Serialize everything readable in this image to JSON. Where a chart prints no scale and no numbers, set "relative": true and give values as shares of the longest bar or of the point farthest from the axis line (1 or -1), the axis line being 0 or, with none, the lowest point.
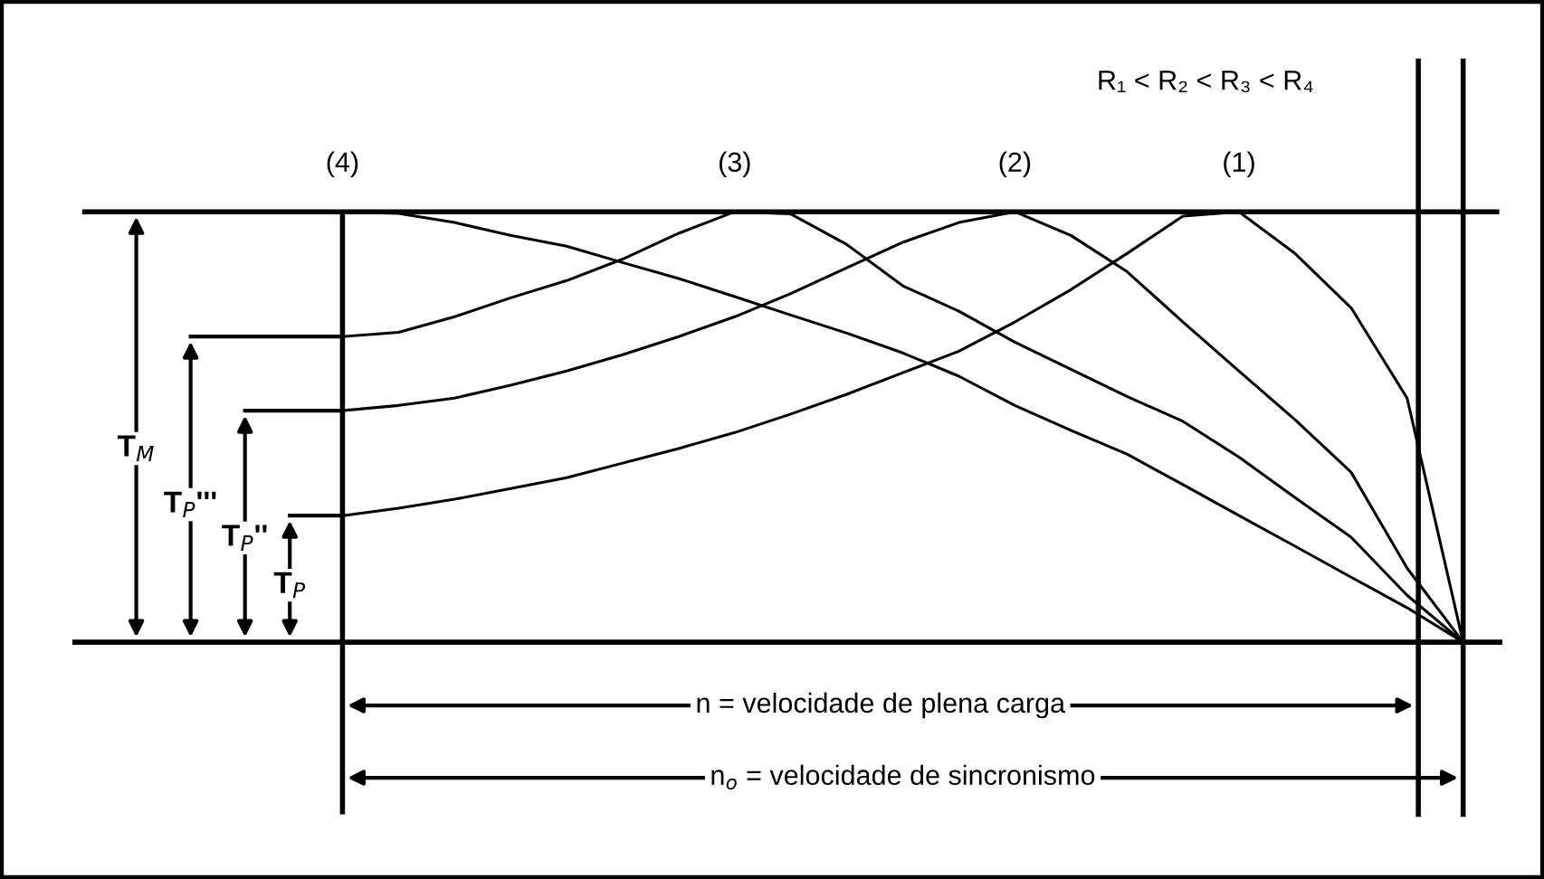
{
  "chart_data": {
    "type": "line",
    "relative": true,
    "legend": false,
    "grid": false,
    "marker": "none",
    "line_style": "solid",
    "categories": [
      null,
      null,
      null,
      null,
      null,
      null,
      null,
      null,
      null,
      null,
      null,
      null,
      null,
      null,
      null,
      null,
      null,
      null,
      null,
      null,
      null
    ],
    "series": [
      {
        "name": "(1)",
        "color": "#000000",
        "values": [
          0.294,
          0.311,
          0.332,
          0.357,
          0.382,
          0.416,
          0.45,
          0.487,
          0.53,
          0.576,
          0.626,
          0.676,
          0.744,
          0.819,
          0.903,
          0.99,
          1.0,
          0.903,
          0.777,
          0.567,
          0
        ]
      },
      {
        "name": "(2)",
        "color": "#000000",
        "values": [
          0.538,
          0.55,
          0.567,
          0.597,
          0.63,
          0.668,
          0.71,
          0.756,
          0.81,
          0.87,
          0.929,
          0.975,
          1.0,
          0.945,
          0.861,
          0.744,
          0.63,
          0.517,
          0.395,
          0.172,
          0
        ]
      },
      {
        "name": "(3)",
        "color": "#000000",
        "values": [
          0.71,
          0.72,
          0.756,
          0.8,
          0.84,
          0.89,
          0.95,
          1.0,
          0.995,
          0.924,
          0.828,
          0.769,
          0.697,
          0.634,
          0.571,
          0.513,
          0.43,
          0.336,
          0.244,
          0.109,
          0
        ]
      },
      {
        "name": "(4)",
        "color": "#000000",
        "values": [
          1.0,
          0.996,
          0.975,
          0.945,
          0.92,
          0.882,
          0.845,
          0.803,
          0.76,
          0.718,
          0.672,
          0.618,
          0.55,
          0.492,
          0.437,
          0.366,
          0.294,
          0.223,
          0.151,
          0.08,
          0
        ]
      }
    ],
    "annotations": [
      "R₁ < R₂ < R₃ < R₄",
      "T$_{M}$",
      "T$_{P}$'''",
      "T$_{P}$''",
      "T$_{P}$",
      "n = velocidade de plena carga",
      "n$_{o}$ = velocidade de sincronismo"
    ]
  }
}
